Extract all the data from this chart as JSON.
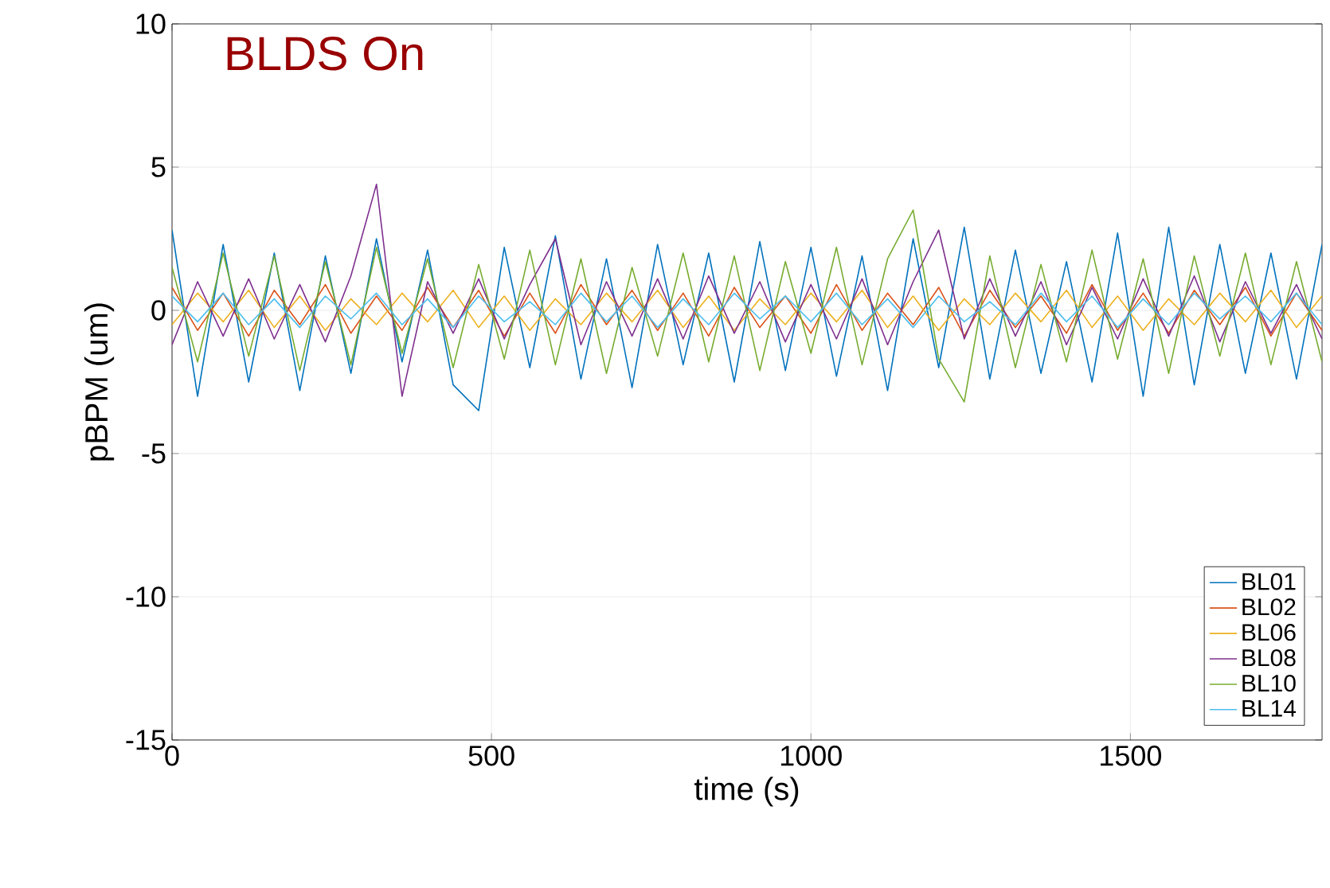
{
  "chart_data": {
    "type": "line",
    "title": "BLDS On",
    "xlabel": "time (s)",
    "ylabel": "pBPM (um)",
    "xlim": [
      0,
      1800
    ],
    "ylim": [
      -15,
      10
    ],
    "xticks": [
      0,
      500,
      1000,
      1500
    ],
    "yticks": [
      -15,
      -10,
      -5,
      0,
      5,
      10
    ],
    "grid": true,
    "legend": "bottom right",
    "x": [
      0,
      40,
      80,
      120,
      160,
      200,
      240,
      280,
      320,
      360,
      400,
      440,
      480,
      520,
      560,
      600,
      640,
      680,
      720,
      760,
      800,
      840,
      880,
      920,
      960,
      1000,
      1040,
      1080,
      1120,
      1160,
      1200,
      1240,
      1280,
      1320,
      1360,
      1400,
      1440,
      1480,
      1520,
      1560,
      1600,
      1640,
      1680,
      1720,
      1760,
      1800
    ],
    "series": [
      {
        "name": "BL01",
        "color": "#0072bd",
        "values": [
          2.8,
          -3.0,
          2.3,
          -2.5,
          2.0,
          -2.8,
          1.9,
          -2.2,
          2.5,
          -1.8,
          2.1,
          -2.6,
          -3.5,
          2.2,
          -2.0,
          2.6,
          -2.4,
          1.8,
          -2.7,
          2.3,
          -1.9,
          2.0,
          -2.5,
          2.4,
          -2.1,
          2.2,
          -2.3,
          1.9,
          -2.8,
          2.5,
          -2.0,
          2.9,
          -2.4,
          2.1,
          -2.2,
          1.7,
          -2.5,
          2.7,
          -3.0,
          2.9,
          -2.6,
          2.3,
          -2.2,
          2.0,
          -2.4,
          2.3
        ]
      },
      {
        "name": "BL02",
        "color": "#d95319",
        "values": [
          0.8,
          -0.7,
          0.6,
          -0.9,
          0.7,
          -0.5,
          0.9,
          -0.8,
          0.5,
          -0.7,
          0.8,
          -0.6,
          0.7,
          -0.9,
          0.6,
          -0.8,
          0.9,
          -0.5,
          0.7,
          -0.7,
          0.6,
          -0.9,
          0.8,
          -0.6,
          0.5,
          -0.8,
          0.9,
          -0.7,
          0.6,
          -0.5,
          0.8,
          -0.9,
          0.7,
          -0.6,
          0.5,
          -0.8,
          0.9,
          -0.7,
          0.6,
          -0.8,
          0.7,
          -0.5,
          0.8,
          -0.9,
          0.6,
          -0.7
        ]
      },
      {
        "name": "BL06",
        "color": "#edb120",
        "values": [
          -0.5,
          0.6,
          -0.4,
          0.7,
          -0.6,
          0.5,
          -0.7,
          0.4,
          -0.5,
          0.6,
          -0.4,
          0.7,
          -0.6,
          0.5,
          -0.7,
          0.4,
          -0.5,
          0.6,
          -0.4,
          0.7,
          -0.6,
          0.5,
          -0.7,
          0.4,
          -0.5,
          0.6,
          -0.4,
          0.7,
          -0.6,
          0.5,
          -0.7,
          0.4,
          -0.5,
          0.6,
          -0.4,
          0.7,
          -0.6,
          0.5,
          -0.7,
          0.4,
          -0.5,
          0.6,
          -0.4,
          0.7,
          -0.6,
          0.5
        ]
      },
      {
        "name": "BL08",
        "color": "#7e2f8e",
        "values": [
          -1.2,
          1.0,
          -0.9,
          1.1,
          -1.0,
          0.9,
          -1.1,
          1.2,
          4.4,
          -3.0,
          1.0,
          -0.8,
          1.1,
          -1.0,
          0.9,
          2.5,
          -1.2,
          1.0,
          -0.9,
          1.1,
          -1.0,
          1.2,
          -0.8,
          1.0,
          -1.1,
          0.9,
          -1.0,
          1.1,
          -1.2,
          1.0,
          2.8,
          -1.0,
          1.1,
          -0.9,
          1.0,
          -1.2,
          0.8,
          -1.0,
          1.1,
          -0.9,
          1.2,
          -1.1,
          1.0,
          -0.8,
          0.9,
          -1.0
        ]
      },
      {
        "name": "BL10",
        "color": "#77ac30",
        "values": [
          1.5,
          -1.8,
          2.0,
          -1.6,
          1.9,
          -2.1,
          1.7,
          -1.9,
          2.2,
          -1.5,
          1.8,
          -2.0,
          1.6,
          -1.7,
          2.1,
          -1.9,
          1.8,
          -2.2,
          1.5,
          -1.6,
          2.0,
          -1.8,
          1.9,
          -2.1,
          1.7,
          -1.5,
          2.2,
          -1.9,
          1.8,
          3.5,
          -1.7,
          -3.2,
          1.9,
          -2.0,
          1.6,
          -1.8,
          2.1,
          -1.7,
          1.8,
          -2.2,
          1.9,
          -1.6,
          2.0,
          -1.9,
          1.7,
          -1.8
        ]
      },
      {
        "name": "BL14",
        "color": "#4dbeee",
        "values": [
          0.5,
          -0.4,
          0.6,
          -0.5,
          0.4,
          -0.6,
          0.5,
          -0.3,
          0.6,
          -0.5,
          0.4,
          -0.6,
          0.5,
          -0.4,
          0.3,
          -0.5,
          0.6,
          -0.4,
          0.5,
          -0.6,
          0.4,
          -0.5,
          0.6,
          -0.3,
          0.5,
          -0.4,
          0.6,
          -0.5,
          0.4,
          -0.6,
          0.5,
          -0.4,
          0.3,
          -0.5,
          0.6,
          -0.4,
          0.5,
          -0.6,
          0.4,
          -0.5,
          0.6,
          -0.3,
          0.5,
          -0.4,
          0.6,
          -0.5
        ]
      }
    ]
  }
}
